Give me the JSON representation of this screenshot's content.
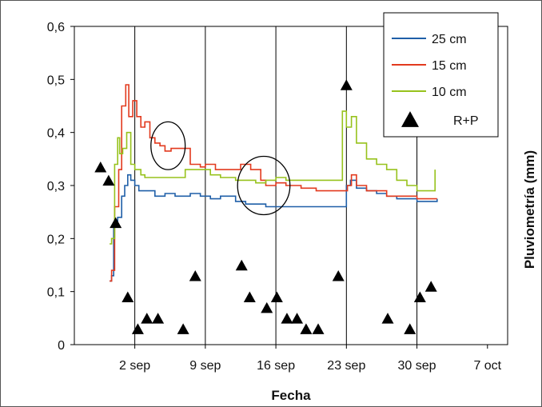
{
  "chart_data": {
    "type": "line",
    "title": "",
    "xlabel": "Fecha",
    "ylabel": "Pluviometría (mm)",
    "x_ticks": [
      "2 sep",
      "9 sep",
      "16 sep",
      "23 sep",
      "30 sep",
      "7 oct"
    ],
    "x_tick_days": [
      2,
      9,
      16,
      23,
      30,
      37
    ],
    "xlim_days": [
      -4,
      39
    ],
    "y_ticks": [
      "0",
      "0,1",
      "0,2",
      "0,3",
      "0,4",
      "0,5",
      "0,6"
    ],
    "ylim": [
      0,
      0.6
    ],
    "vertical_gridlines_at_days": [
      2,
      9,
      16,
      23,
      30
    ],
    "legend_position": "top-right",
    "series": [
      {
        "name": "25 cm",
        "color": "#1f5fa8",
        "points": [
          [
            -0.5,
            0.12
          ],
          [
            -0.3,
            0.13
          ],
          [
            -0.1,
            0.23
          ],
          [
            0.3,
            0.24
          ],
          [
            0.7,
            0.28
          ],
          [
            1.0,
            0.3
          ],
          [
            1.3,
            0.32
          ],
          [
            1.6,
            0.31
          ],
          [
            2.0,
            0.3
          ],
          [
            2.4,
            0.29
          ],
          [
            3.0,
            0.29
          ],
          [
            4.0,
            0.28
          ],
          [
            5.0,
            0.285
          ],
          [
            6.0,
            0.28
          ],
          [
            7.5,
            0.285
          ],
          [
            8.5,
            0.28
          ],
          [
            9.5,
            0.275
          ],
          [
            10.5,
            0.28
          ],
          [
            12.0,
            0.27
          ],
          [
            13.0,
            0.265
          ],
          [
            14.0,
            0.265
          ],
          [
            15.0,
            0.26
          ],
          [
            16.0,
            0.26
          ],
          [
            17.0,
            0.26
          ],
          [
            19.0,
            0.26
          ],
          [
            21.0,
            0.26
          ],
          [
            22.5,
            0.26
          ],
          [
            23.0,
            0.3
          ],
          [
            23.4,
            0.31
          ],
          [
            24.0,
            0.295
          ],
          [
            25.0,
            0.29
          ],
          [
            26.0,
            0.285
          ],
          [
            27.0,
            0.28
          ],
          [
            28.0,
            0.275
          ],
          [
            29.0,
            0.275
          ],
          [
            30.0,
            0.27
          ],
          [
            31.0,
            0.27
          ],
          [
            32.0,
            0.275
          ]
        ]
      },
      {
        "name": "15 cm",
        "color": "#e23a1e",
        "points": [
          [
            -0.5,
            0.12
          ],
          [
            -0.3,
            0.14
          ],
          [
            0.0,
            0.26
          ],
          [
            0.4,
            0.33
          ],
          [
            0.7,
            0.45
          ],
          [
            1.1,
            0.49
          ],
          [
            1.4,
            0.43
          ],
          [
            1.8,
            0.46
          ],
          [
            2.2,
            0.43
          ],
          [
            2.6,
            0.41
          ],
          [
            3.0,
            0.42
          ],
          [
            3.5,
            0.39
          ],
          [
            4.0,
            0.38
          ],
          [
            4.5,
            0.375
          ],
          [
            5.0,
            0.365
          ],
          [
            5.6,
            0.37
          ],
          [
            7.5,
            0.34
          ],
          [
            8.5,
            0.335
          ],
          [
            9.0,
            0.34
          ],
          [
            10.0,
            0.33
          ],
          [
            11.0,
            0.33
          ],
          [
            12.5,
            0.34
          ],
          [
            13.5,
            0.33
          ],
          [
            14.5,
            0.31
          ],
          [
            15.0,
            0.3
          ],
          [
            16.0,
            0.305
          ],
          [
            17.0,
            0.3
          ],
          [
            18.5,
            0.295
          ],
          [
            20.0,
            0.29
          ],
          [
            22.0,
            0.29
          ],
          [
            22.8,
            0.29
          ],
          [
            23.1,
            0.3
          ],
          [
            23.5,
            0.32
          ],
          [
            24.0,
            0.3
          ],
          [
            25.0,
            0.29
          ],
          [
            26.0,
            0.29
          ],
          [
            27.0,
            0.28
          ],
          [
            28.5,
            0.28
          ],
          [
            30.0,
            0.275
          ],
          [
            31.0,
            0.275
          ],
          [
            32.0,
            0.275
          ]
        ]
      },
      {
        "name": "10 cm",
        "color": "#97c21c",
        "points": [
          [
            -0.5,
            0.19
          ],
          [
            -0.3,
            0.2
          ],
          [
            0.0,
            0.34
          ],
          [
            0.3,
            0.39
          ],
          [
            0.5,
            0.36
          ],
          [
            0.8,
            0.37
          ],
          [
            1.2,
            0.4
          ],
          [
            1.6,
            0.34
          ],
          [
            2.0,
            0.33
          ],
          [
            2.6,
            0.32
          ],
          [
            3.0,
            0.315
          ],
          [
            5.5,
            0.315
          ],
          [
            7.0,
            0.33
          ],
          [
            8.0,
            0.33
          ],
          [
            9.5,
            0.32
          ],
          [
            10.5,
            0.315
          ],
          [
            12.0,
            0.31
          ],
          [
            13.0,
            0.31
          ],
          [
            14.0,
            0.305
          ],
          [
            15.0,
            0.31
          ],
          [
            16.0,
            0.315
          ],
          [
            17.0,
            0.31
          ],
          [
            19.0,
            0.31
          ],
          [
            20.5,
            0.31
          ],
          [
            22.0,
            0.31
          ],
          [
            22.6,
            0.44
          ],
          [
            23.0,
            0.41
          ],
          [
            23.5,
            0.43
          ],
          [
            24.0,
            0.38
          ],
          [
            25.0,
            0.35
          ],
          [
            26.0,
            0.34
          ],
          [
            27.0,
            0.33
          ],
          [
            28.0,
            0.31
          ],
          [
            29.0,
            0.3
          ],
          [
            30.0,
            0.29
          ],
          [
            31.0,
            0.29
          ],
          [
            31.6,
            0.29
          ],
          [
            31.8,
            0.33
          ]
        ]
      },
      {
        "name": "R+P",
        "marker": "triangle",
        "color": "#000000",
        "points": [
          [
            -1.4,
            0.335
          ],
          [
            -0.6,
            0.31
          ],
          [
            0.1,
            0.23
          ],
          [
            1.3,
            0.09
          ],
          [
            2.3,
            0.03
          ],
          [
            3.2,
            0.05
          ],
          [
            4.3,
            0.05
          ],
          [
            6.8,
            0.03
          ],
          [
            8.0,
            0.13
          ],
          [
            12.6,
            0.15
          ],
          [
            13.4,
            0.09
          ],
          [
            15.1,
            0.07
          ],
          [
            16.1,
            0.09
          ],
          [
            17.1,
            0.05
          ],
          [
            18.1,
            0.05
          ],
          [
            19.0,
            0.03
          ],
          [
            20.2,
            0.03
          ],
          [
            22.2,
            0.13
          ],
          [
            23.0,
            0.49
          ],
          [
            27.1,
            0.05
          ],
          [
            29.3,
            0.03
          ],
          [
            30.3,
            0.09
          ],
          [
            31.4,
            0.11
          ]
        ]
      }
    ],
    "annotations": [
      {
        "shape": "ellipse",
        "cx_day": 5.3,
        "cy": 0.375,
        "rx_days": 1.7,
        "ry": 0.045
      },
      {
        "shape": "ellipse",
        "cx_day": 14.8,
        "cy": 0.3,
        "rx_days": 2.6,
        "ry": 0.055
      }
    ]
  }
}
